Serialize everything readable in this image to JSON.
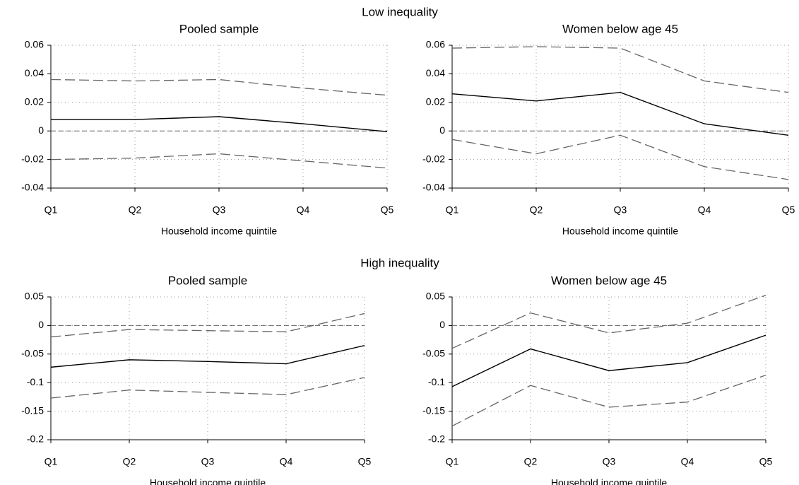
{
  "sections": [
    "Low inequality",
    "High inequality"
  ],
  "chart_data": [
    {
      "type": "line",
      "section": 0,
      "title": "Pooled sample",
      "xlabel": "Household income quintile",
      "categories": [
        "Q1",
        "Q2",
        "Q3",
        "Q4",
        "Q5"
      ],
      "ylim": [
        -0.04,
        0.06
      ],
      "yticks": [
        -0.04,
        -0.02,
        0,
        0.02,
        0.04,
        0.06
      ],
      "grid": true,
      "reference_line": 0,
      "series": [
        {
          "color": "#000000",
          "dashed": false,
          "values": [
            0.008,
            0.008,
            0.01,
            0.005,
            -0.0005
          ]
        },
        {
          "color": "#666666",
          "dashed": true,
          "values": [
            0.036,
            0.035,
            0.036,
            0.03,
            0.025
          ]
        },
        {
          "color": "#666666",
          "dashed": true,
          "values": [
            -0.02,
            -0.019,
            -0.016,
            -0.021,
            -0.026
          ]
        }
      ]
    },
    {
      "type": "line",
      "section": 0,
      "title": "Women below age 45",
      "xlabel": "Household income quintile",
      "categories": [
        "Q1",
        "Q2",
        "Q3",
        "Q4",
        "Q5"
      ],
      "ylim": [
        -0.04,
        0.06
      ],
      "yticks": [
        -0.04,
        -0.02,
        0,
        0.02,
        0.04,
        0.06
      ],
      "grid": true,
      "reference_line": 0,
      "series": [
        {
          "color": "#000000",
          "dashed": false,
          "values": [
            0.026,
            0.021,
            0.027,
            0.005,
            -0.003
          ]
        },
        {
          "color": "#666666",
          "dashed": true,
          "values": [
            0.058,
            0.059,
            0.058,
            0.035,
            0.027
          ]
        },
        {
          "color": "#666666",
          "dashed": true,
          "values": [
            -0.006,
            -0.016,
            -0.003,
            -0.025,
            -0.034
          ]
        }
      ]
    },
    {
      "type": "line",
      "section": 1,
      "title": "Pooled sample",
      "xlabel": "Household income quintile",
      "categories": [
        "Q1",
        "Q2",
        "Q3",
        "Q4",
        "Q5"
      ],
      "ylim": [
        -0.2,
        0.05
      ],
      "yticks": [
        -0.2,
        -0.15,
        -0.1,
        -0.05,
        0,
        0.05
      ],
      "grid": true,
      "reference_line": 0,
      "series": [
        {
          "color": "#000000",
          "dashed": false,
          "values": [
            -0.073,
            -0.06,
            -0.063,
            -0.067,
            -0.035
          ]
        },
        {
          "color": "#666666",
          "dashed": true,
          "values": [
            -0.02,
            -0.007,
            -0.009,
            -0.011,
            0.021
          ]
        },
        {
          "color": "#666666",
          "dashed": true,
          "values": [
            -0.127,
            -0.113,
            -0.117,
            -0.121,
            -0.091
          ]
        }
      ]
    },
    {
      "type": "line",
      "section": 1,
      "title": "Women below age 45",
      "xlabel": "Household income quintile",
      "categories": [
        "Q1",
        "Q2",
        "Q3",
        "Q4",
        "Q5"
      ],
      "ylim": [
        -0.2,
        0.05
      ],
      "yticks": [
        -0.2,
        -0.15,
        -0.1,
        -0.05,
        0,
        0.05
      ],
      "grid": true,
      "reference_line": 0,
      "series": [
        {
          "color": "#000000",
          "dashed": false,
          "values": [
            -0.107,
            -0.041,
            -0.079,
            -0.065,
            -0.017
          ]
        },
        {
          "color": "#666666",
          "dashed": true,
          "values": [
            -0.04,
            0.022,
            -0.013,
            0.004,
            0.053
          ]
        },
        {
          "color": "#666666",
          "dashed": true,
          "values": [
            -0.176,
            -0.105,
            -0.143,
            -0.134,
            -0.087
          ]
        }
      ]
    }
  ]
}
